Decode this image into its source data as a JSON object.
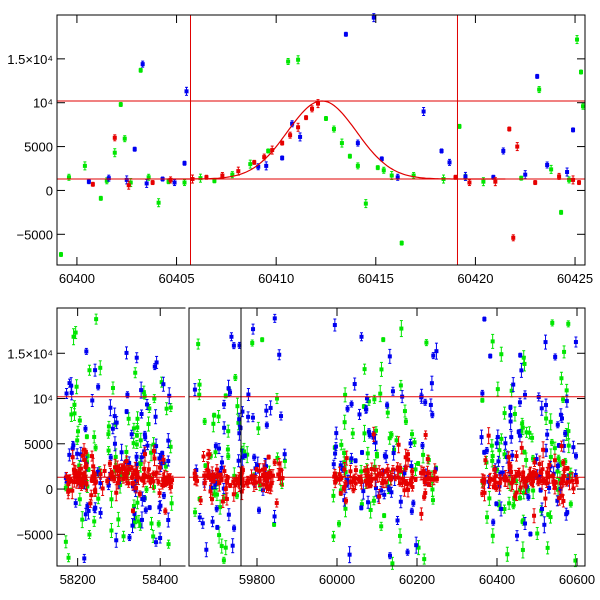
{
  "chart_data": [
    {
      "type": "scatter",
      "title": "",
      "xlabel": "",
      "ylabel": "",
      "xlim": [
        60399,
        60425.5
      ],
      "ylim": [
        -8500,
        20000
      ],
      "x_ticks": [
        60400,
        60405,
        60410,
        60415,
        60420,
        60425
      ],
      "y_ticks": [
        {
          "value": -5000,
          "label": "−5000"
        },
        {
          "value": 0,
          "label": "0"
        },
        {
          "value": 5000,
          "label": "5000"
        },
        {
          "value": 10000,
          "label": "10⁴"
        },
        {
          "value": 15000,
          "label": "1.5×10⁴"
        }
      ],
      "hlines": [
        1300,
        10200
      ],
      "vlines": [
        60405.7,
        60419.1
      ],
      "model": {
        "t0": 60412.3,
        "baseline": 1300,
        "peak": 10200,
        "tau": 1.9
      },
      "series": [
        {
          "color": "#00e600",
          "points": [
            [
              60399.2,
              -7300
            ],
            [
              60399.6,
              1500
            ],
            [
              60400.4,
              2800
            ],
            [
              60401.2,
              -900
            ],
            [
              60401.5,
              1100
            ],
            [
              60401.9,
              4300
            ],
            [
              60402.2,
              9800
            ],
            [
              60402.4,
              5900
            ],
            [
              60402.7,
              900
            ],
            [
              60403.2,
              13700
            ],
            [
              60403.6,
              1500
            ],
            [
              60404.1,
              -1400
            ],
            [
              60404.6,
              1000
            ],
            [
              60405.4,
              900
            ],
            [
              60406.2,
              1400
            ],
            [
              60406.9,
              1100
            ],
            [
              60407.8,
              1800
            ],
            [
              60408.7,
              3000
            ],
            [
              60409.6,
              4500
            ],
            [
              60410.6,
              14700
            ],
            [
              60411.1,
              14900
            ],
            [
              60412.5,
              8200
            ],
            [
              60412.9,
              7000
            ],
            [
              60413.3,
              5400
            ],
            [
              60413.7,
              3900
            ],
            [
              60414.1,
              2800
            ],
            [
              60414.5,
              -1500
            ],
            [
              60415.1,
              2600
            ],
            [
              60415.4,
              2300
            ],
            [
              60415.8,
              1700
            ],
            [
              60416.3,
              -6000
            ],
            [
              60416.9,
              1700
            ],
            [
              60418.4,
              1300
            ],
            [
              60419.2,
              7300
            ],
            [
              60419.5,
              1500
            ],
            [
              60420.4,
              1000
            ],
            [
              60422.3,
              1400
            ],
            [
              60423.2,
              11500
            ],
            [
              60423.8,
              2400
            ],
            [
              60424.3,
              -2500
            ],
            [
              60424.7,
              1200
            ],
            [
              60425.1,
              17200
            ],
            [
              60425.3,
              13500
            ],
            [
              60425.4,
              9600
            ]
          ]
        },
        {
          "color": "#0000f0",
          "points": [
            [
              60400.6,
              1000
            ],
            [
              60401.6,
              1400
            ],
            [
              60402.5,
              1200
            ],
            [
              60402.9,
              4700
            ],
            [
              60403.3,
              14400
            ],
            [
              60403.5,
              800
            ],
            [
              60404.3,
              1300
            ],
            [
              60404.9,
              900
            ],
            [
              60405.5,
              11300
            ],
            [
              60405.4,
              3100
            ],
            [
              60409.1,
              2700
            ],
            [
              60409.5,
              2800
            ],
            [
              60410.3,
              3700
            ],
            [
              60410.8,
              7600
            ],
            [
              60411.2,
              6100
            ],
            [
              60413.5,
              17800
            ],
            [
              60414.1,
              5400
            ],
            [
              60414.9,
              19700
            ],
            [
              60415.3,
              3600
            ],
            [
              60416.1,
              1500
            ],
            [
              60417.4,
              9000
            ],
            [
              60418.3,
              4500
            ],
            [
              60418.7,
              3200
            ],
            [
              60419.5,
              1600
            ],
            [
              60420.9,
              1500
            ],
            [
              60421.4,
              4500
            ],
            [
              60422.5,
              1800
            ],
            [
              60423.1,
              13000
            ],
            [
              60423.6,
              2900
            ],
            [
              60424.6,
              2100
            ],
            [
              60424.9,
              6900
            ]
          ]
        },
        {
          "color": "#e60000",
          "points": [
            [
              60400.8,
              700
            ],
            [
              60401.9,
              6000
            ],
            [
              60402.6,
              600
            ],
            [
              60403.8,
              900
            ],
            [
              60404.7,
              1200
            ],
            [
              60405.8,
              1300
            ],
            [
              60406.5,
              1500
            ],
            [
              60407.3,
              1700
            ],
            [
              60408.1,
              2200
            ],
            [
              60408.9,
              3200
            ],
            [
              60409.4,
              3800
            ],
            [
              60409.8,
              4600
            ],
            [
              60410.3,
              5400
            ],
            [
              60410.7,
              6300
            ],
            [
              60411.1,
              7200
            ],
            [
              60411.5,
              8300
            ],
            [
              60411.8,
              9300
            ],
            [
              60412.1,
              9900
            ],
            [
              60419.0,
              1500
            ],
            [
              60419.7,
              900
            ],
            [
              60421.0,
              1000
            ],
            [
              60421.7,
              7000
            ],
            [
              60421.9,
              -5400
            ],
            [
              60422.1,
              5000
            ],
            [
              60423.0,
              900
            ],
            [
              60424.2,
              1600
            ],
            [
              60424.9,
              1200
            ],
            [
              60425.2,
              900
            ]
          ]
        }
      ]
    },
    {
      "type": "scatter",
      "title": "",
      "xlabel": "",
      "ylabel": "",
      "ylim": [
        -8500,
        20000
      ],
      "hlines": [
        1300,
        10200
      ],
      "x_ticks": [
        58200,
        58400,
        59800,
        60000,
        60200,
        60400,
        60600
      ],
      "y_ticks": [
        {
          "value": -5000,
          "label": "−5000"
        },
        {
          "value": 0,
          "label": "0"
        },
        {
          "value": 5000,
          "label": "5000"
        },
        {
          "value": 10000,
          "label": "10⁴"
        },
        {
          "value": 15000,
          "label": "1.5×10⁴"
        }
      ],
      "segments": [
        {
          "xlim": [
            58150,
            58460
          ],
          "data_range": [
            58170,
            58430
          ]
        },
        {
          "xlim": [
            59630,
            60620
          ],
          "data_range": [
            59640,
            60600
          ],
          "gaps": [
            [
              59870,
              59990
            ],
            [
              60250,
              60360
            ]
          ]
        }
      ],
      "series_colors": [
        "#00e600",
        "#0000f0",
        "#e60000"
      ]
    }
  ]
}
